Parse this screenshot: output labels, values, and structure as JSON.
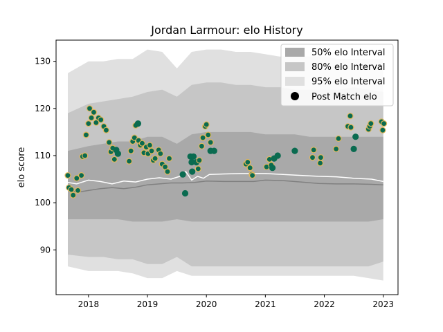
{
  "chart_data": {
    "type": "scatter",
    "title": "Jordan Larmour: elo History",
    "xlabel": "",
    "ylabel": "elo score",
    "xlim": [
      2017.45,
      2023.25
    ],
    "ylim": [
      80.5,
      134.5
    ],
    "x_ticks": [
      2018,
      2019,
      2020,
      2021,
      2022,
      2023
    ],
    "x_tick_labels": [
      "2018",
      "2019",
      "2020",
      "2021",
      "2022",
      "2023"
    ],
    "y_ticks": [
      90,
      100,
      110,
      120,
      130
    ],
    "y_tick_labels": [
      "90",
      "100",
      "110",
      "120",
      "130"
    ],
    "grid": false,
    "legend_position": "top-right",
    "legend": {
      "band50": "50% elo Interval",
      "band80": "80% elo Interval",
      "band95": "95% elo Interval",
      "points": "Post Match elo"
    },
    "colors": {
      "band50": "#a9a9a9",
      "band80": "#c6c6c6",
      "band95": "#e0e0e0",
      "median_line": "#ffffff",
      "baseline_line": "#808080",
      "point_fill": "#0a6b50",
      "point_edge_win": "#e3b85c"
    },
    "bands": {
      "x": [
        2017.65,
        2018.0,
        2018.25,
        2018.5,
        2018.75,
        2019.0,
        2019.25,
        2019.5,
        2019.75,
        2020.0,
        2020.25,
        2020.5,
        2020.75,
        2021.0,
        2021.25,
        2021.5,
        2021.75,
        2022.0,
        2022.25,
        2022.5,
        2022.75,
        2023.0
      ],
      "p95_hi": [
        127.5,
        130.0,
        130.0,
        130.5,
        130.5,
        132.5,
        132.0,
        128.5,
        132.0,
        132.5,
        132.5,
        132.0,
        132.0,
        131.5,
        131.0,
        131.0,
        131.0,
        131.0,
        130.5,
        130.5,
        130.5,
        130.5
      ],
      "p80_hi": [
        119.0,
        121.0,
        121.5,
        122.0,
        122.5,
        123.5,
        124.0,
        122.5,
        125.0,
        125.5,
        125.5,
        125.0,
        125.0,
        124.5,
        124.5,
        124.0,
        124.0,
        124.0,
        124.0,
        124.5,
        124.0,
        123.5
      ],
      "p50_hi": [
        111.0,
        112.0,
        112.5,
        113.0,
        113.0,
        114.0,
        114.0,
        112.5,
        114.5,
        115.0,
        115.0,
        115.0,
        115.0,
        114.5,
        114.5,
        114.5,
        114.0,
        114.0,
        114.0,
        114.0,
        114.0,
        114.0
      ],
      "p50_lo": [
        96.5,
        96.5,
        96.5,
        96.5,
        96.0,
        96.0,
        96.0,
        96.5,
        96.0,
        96.0,
        96.0,
        96.0,
        96.0,
        96.0,
        96.0,
        96.0,
        96.0,
        96.0,
        96.0,
        96.0,
        96.0,
        96.5
      ],
      "p80_lo": [
        89.0,
        88.5,
        88.5,
        88.0,
        88.0,
        87.0,
        87.0,
        88.5,
        86.5,
        86.5,
        86.5,
        86.5,
        86.5,
        86.5,
        86.5,
        86.5,
        86.5,
        86.5,
        86.5,
        86.5,
        86.5,
        87.5
      ],
      "p95_lo": [
        86.5,
        85.5,
        85.5,
        85.5,
        85.0,
        84.0,
        84.0,
        85.5,
        84.5,
        84.5,
        84.5,
        84.5,
        84.5,
        84.5,
        84.5,
        84.5,
        84.5,
        84.5,
        84.5,
        84.5,
        84.0,
        83.5
      ]
    },
    "median_line": {
      "x": [
        2017.65,
        2017.8,
        2018.0,
        2018.2,
        2018.4,
        2018.6,
        2018.8,
        2019.0,
        2019.2,
        2019.4,
        2019.55,
        2019.65,
        2019.75,
        2019.85,
        2019.95,
        2020.05,
        2020.3,
        2020.6,
        2020.8,
        2021.0,
        2021.3,
        2021.6,
        2021.9,
        2022.2,
        2022.5,
        2022.8,
        2023.0
      ],
      "y": [
        104.3,
        104.0,
        104.8,
        104.5,
        104.0,
        104.6,
        104.4,
        105.0,
        105.3,
        105.0,
        105.6,
        106.6,
        104.8,
        105.6,
        105.2,
        106.0,
        106.1,
        106.2,
        106.2,
        106.2,
        106.0,
        105.8,
        105.6,
        105.5,
        105.2,
        105.0,
        104.5
      ]
    },
    "baseline_line": {
      "x": [
        2017.65,
        2017.8,
        2018.0,
        2018.2,
        2018.4,
        2018.6,
        2018.8,
        2019.0,
        2019.2,
        2019.4,
        2019.6,
        2019.8,
        2020.0,
        2020.3,
        2020.6,
        2020.8,
        2021.0,
        2021.3,
        2021.6,
        2021.9,
        2022.2,
        2022.5,
        2022.8,
        2023.0
      ],
      "y": [
        102.8,
        102.2,
        102.6,
        103.0,
        103.2,
        103.0,
        103.3,
        103.8,
        104.0,
        104.2,
        104.2,
        104.3,
        104.6,
        104.5,
        104.5,
        104.5,
        104.8,
        104.7,
        104.4,
        104.1,
        104.0,
        104.0,
        103.9,
        103.8
      ]
    },
    "points": [
      {
        "x": 2017.65,
        "y": 105.8,
        "win": true
      },
      {
        "x": 2017.67,
        "y": 103.2,
        "win": true
      },
      {
        "x": 2017.71,
        "y": 102.8,
        "win": true
      },
      {
        "x": 2017.74,
        "y": 101.6,
        "win": true
      },
      {
        "x": 2017.8,
        "y": 105.2,
        "win": true
      },
      {
        "x": 2017.82,
        "y": 102.6,
        "win": true
      },
      {
        "x": 2017.88,
        "y": 105.8,
        "win": true
      },
      {
        "x": 2017.9,
        "y": 109.8,
        "win": true
      },
      {
        "x": 2017.94,
        "y": 110.0,
        "win": true
      },
      {
        "x": 2017.96,
        "y": 114.4,
        "win": true
      },
      {
        "x": 2018.0,
        "y": 116.8,
        "win": true
      },
      {
        "x": 2018.02,
        "y": 120.0,
        "win": true
      },
      {
        "x": 2018.05,
        "y": 118.0,
        "win": true
      },
      {
        "x": 2018.09,
        "y": 119.2,
        "win": true
      },
      {
        "x": 2018.13,
        "y": 117.0,
        "win": true
      },
      {
        "x": 2018.17,
        "y": 118.0,
        "win": true
      },
      {
        "x": 2018.21,
        "y": 117.6,
        "win": true
      },
      {
        "x": 2018.26,
        "y": 116.2,
        "win": true
      },
      {
        "x": 2018.3,
        "y": 115.4,
        "win": true
      },
      {
        "x": 2018.35,
        "y": 112.8,
        "win": true
      },
      {
        "x": 2018.38,
        "y": 110.8,
        "win": true
      },
      {
        "x": 2018.41,
        "y": 111.6,
        "win": true
      },
      {
        "x": 2018.44,
        "y": 109.2,
        "win": true
      },
      {
        "x": 2018.47,
        "y": 111.2,
        "win": false
      },
      {
        "x": 2018.5,
        "y": 110.4,
        "win": false
      },
      {
        "x": 2018.69,
        "y": 108.8,
        "win": true
      },
      {
        "x": 2018.72,
        "y": 111.0,
        "win": true
      },
      {
        "x": 2018.75,
        "y": 113.0,
        "win": true
      },
      {
        "x": 2018.78,
        "y": 113.8,
        "win": true
      },
      {
        "x": 2018.8,
        "y": 116.4,
        "win": true
      },
      {
        "x": 2018.84,
        "y": 116.8,
        "win": false
      },
      {
        "x": 2018.85,
        "y": 113.2,
        "win": true
      },
      {
        "x": 2018.88,
        "y": 112.2,
        "win": true
      },
      {
        "x": 2018.91,
        "y": 112.6,
        "win": true
      },
      {
        "x": 2018.94,
        "y": 110.6,
        "win": true
      },
      {
        "x": 2018.98,
        "y": 111.8,
        "win": true
      },
      {
        "x": 2019.01,
        "y": 110.4,
        "win": true
      },
      {
        "x": 2019.04,
        "y": 112.2,
        "win": true
      },
      {
        "x": 2019.07,
        "y": 111.0,
        "win": true
      },
      {
        "x": 2019.1,
        "y": 109.0,
        "win": true
      },
      {
        "x": 2019.13,
        "y": 109.4,
        "win": true
      },
      {
        "x": 2019.19,
        "y": 111.2,
        "win": true
      },
      {
        "x": 2019.22,
        "y": 110.4,
        "win": true
      },
      {
        "x": 2019.25,
        "y": 108.2,
        "win": true
      },
      {
        "x": 2019.3,
        "y": 107.6,
        "win": true
      },
      {
        "x": 2019.34,
        "y": 106.6,
        "win": true
      },
      {
        "x": 2019.37,
        "y": 109.4,
        "win": true
      },
      {
        "x": 2019.6,
        "y": 106.0,
        "win": false
      },
      {
        "x": 2019.64,
        "y": 102.0,
        "win": false
      },
      {
        "x": 2019.73,
        "y": 109.8,
        "win": false
      },
      {
        "x": 2019.75,
        "y": 108.6,
        "win": false
      },
      {
        "x": 2019.76,
        "y": 106.6,
        "win": false
      },
      {
        "x": 2019.78,
        "y": 109.8,
        "win": false
      },
      {
        "x": 2019.83,
        "y": 108.6,
        "win": false
      },
      {
        "x": 2019.86,
        "y": 107.2,
        "win": true
      },
      {
        "x": 2019.88,
        "y": 109.0,
        "win": true
      },
      {
        "x": 2019.92,
        "y": 112.0,
        "win": true
      },
      {
        "x": 2019.94,
        "y": 113.8,
        "win": true
      },
      {
        "x": 2019.98,
        "y": 116.2,
        "win": true
      },
      {
        "x": 2020.0,
        "y": 116.6,
        "win": true
      },
      {
        "x": 2020.03,
        "y": 114.4,
        "win": true
      },
      {
        "x": 2020.07,
        "y": 112.8,
        "win": true
      },
      {
        "x": 2020.07,
        "y": 111.0,
        "win": false
      },
      {
        "x": 2020.13,
        "y": 111.0,
        "win": false
      },
      {
        "x": 2020.67,
        "y": 108.2,
        "win": true
      },
      {
        "x": 2020.7,
        "y": 108.6,
        "win": true
      },
      {
        "x": 2020.74,
        "y": 107.4,
        "win": true
      },
      {
        "x": 2020.77,
        "y": 106.0,
        "win": true
      },
      {
        "x": 2020.78,
        "y": 105.8,
        "win": true
      },
      {
        "x": 2021.02,
        "y": 107.6,
        "win": true
      },
      {
        "x": 2021.07,
        "y": 109.2,
        "win": true
      },
      {
        "x": 2021.1,
        "y": 108.0,
        "win": true
      },
      {
        "x": 2021.12,
        "y": 107.4,
        "win": false
      },
      {
        "x": 2021.15,
        "y": 109.4,
        "win": false
      },
      {
        "x": 2021.21,
        "y": 110.0,
        "win": false
      },
      {
        "x": 2021.5,
        "y": 111.0,
        "win": false
      },
      {
        "x": 2021.8,
        "y": 109.6,
        "win": true
      },
      {
        "x": 2021.82,
        "y": 111.2,
        "win": true
      },
      {
        "x": 2021.93,
        "y": 108.4,
        "win": true
      },
      {
        "x": 2021.94,
        "y": 109.6,
        "win": true
      },
      {
        "x": 2022.2,
        "y": 111.4,
        "win": true
      },
      {
        "x": 2022.24,
        "y": 113.6,
        "win": true
      },
      {
        "x": 2022.4,
        "y": 116.2,
        "win": true
      },
      {
        "x": 2022.44,
        "y": 118.4,
        "win": true
      },
      {
        "x": 2022.45,
        "y": 116.0,
        "win": true
      },
      {
        "x": 2022.5,
        "y": 111.4,
        "win": false
      },
      {
        "x": 2022.53,
        "y": 114.0,
        "win": false
      },
      {
        "x": 2022.75,
        "y": 115.6,
        "win": true
      },
      {
        "x": 2022.77,
        "y": 116.2,
        "win": true
      },
      {
        "x": 2022.79,
        "y": 116.8,
        "win": true
      },
      {
        "x": 2022.97,
        "y": 117.2,
        "win": true
      },
      {
        "x": 2022.99,
        "y": 115.4,
        "win": true
      },
      {
        "x": 2023.01,
        "y": 116.8,
        "win": true
      }
    ]
  }
}
